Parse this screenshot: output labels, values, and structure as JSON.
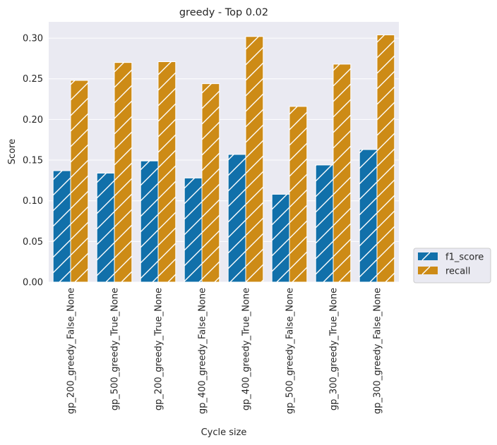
{
  "chart_data": {
    "type": "bar",
    "title": "greedy - Top 0.02",
    "xlabel": "Cycle size",
    "ylabel": "Score",
    "ylim": [
      0,
      0.32
    ],
    "yticks": [
      "0.00",
      "0.05",
      "0.10",
      "0.15",
      "0.20",
      "0.25",
      "0.30"
    ],
    "grid": true,
    "legend_position": "outside-right-bottom",
    "categories": [
      "gp_200_greedy_False_None",
      "gp_500_greedy_True_None",
      "gp_200_greedy_True_None",
      "gp_400_greedy_False_None",
      "gp_400_greedy_True_None",
      "gp_500_greedy_False_None",
      "gp_300_greedy_True_None",
      "gp_300_greedy_False_None"
    ],
    "series": [
      {
        "name": "f1_score",
        "color": "#1170aa",
        "values": [
          0.137,
          0.134,
          0.149,
          0.128,
          0.157,
          0.108,
          0.144,
          0.163
        ]
      },
      {
        "name": "recall",
        "color": "#cd8b16",
        "values": [
          0.248,
          0.27,
          0.271,
          0.244,
          0.302,
          0.216,
          0.268,
          0.304
        ]
      }
    ]
  }
}
